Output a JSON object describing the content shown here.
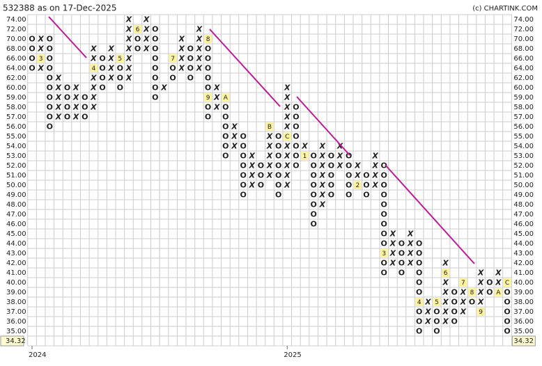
{
  "chart_data": {
    "type": "pnf",
    "title": "532388 as on 17-Dec-2025",
    "source": "(c) CHARTINK.COM",
    "levels": [
      {
        "value": 74,
        "label": "74.00"
      },
      {
        "value": 72,
        "label": "72.00"
      },
      {
        "value": 70,
        "label": "70.00"
      },
      {
        "value": 68,
        "label": "68.00"
      },
      {
        "value": 66,
        "label": "66.00"
      },
      {
        "value": 64,
        "label": "64.00"
      },
      {
        "value": 62,
        "label": "62.00"
      },
      {
        "value": 60,
        "label": "60.00"
      },
      {
        "value": 59,
        "label": "59.00"
      },
      {
        "value": 58,
        "label": "58.00"
      },
      {
        "value": 57,
        "label": "57.00"
      },
      {
        "value": 56,
        "label": "56.00"
      },
      {
        "value": 55,
        "label": "55.00"
      },
      {
        "value": 54,
        "label": "54.00"
      },
      {
        "value": 53,
        "label": "53.00"
      },
      {
        "value": 52,
        "label": "52.00"
      },
      {
        "value": 51,
        "label": "51.00"
      },
      {
        "value": 50,
        "label": "50.00"
      },
      {
        "value": 49,
        "label": "49.00"
      },
      {
        "value": 48,
        "label": "48.00"
      },
      {
        "value": 47,
        "label": "47.00"
      },
      {
        "value": 46,
        "label": "46.00"
      },
      {
        "value": 45,
        "label": "45.00"
      },
      {
        "value": 44,
        "label": "44.00"
      },
      {
        "value": 43,
        "label": "43.00"
      },
      {
        "value": 42,
        "label": "42.00"
      },
      {
        "value": 41,
        "label": "41.00"
      },
      {
        "value": 40,
        "label": "40.00"
      },
      {
        "value": 39,
        "label": "39.00"
      },
      {
        "value": 38,
        "label": "38.00"
      },
      {
        "value": 37,
        "label": "37.00"
      },
      {
        "value": 36,
        "label": "36.00"
      },
      {
        "value": 35,
        "label": "35.00"
      }
    ],
    "last_price": 34.32,
    "year_labels": [
      {
        "label": "2024",
        "column": 0
      },
      {
        "label": "2025",
        "column": 29
      }
    ],
    "columns": [
      {
        "type": "O",
        "high": 70,
        "low": 64,
        "markers": []
      },
      {
        "type": "X",
        "high": 70,
        "low": 64,
        "markers": [
          {
            "value": 66,
            "label": "3"
          }
        ]
      },
      {
        "type": "O",
        "high": 70,
        "low": 56,
        "markers": []
      },
      {
        "type": "X",
        "high": 62,
        "low": 57,
        "markers": []
      },
      {
        "type": "O",
        "high": 60,
        "low": 57,
        "markers": []
      },
      {
        "type": "X",
        "high": 60,
        "low": 57,
        "markers": []
      },
      {
        "type": "O",
        "high": 59,
        "low": 57,
        "markers": []
      },
      {
        "type": "X",
        "high": 68,
        "low": 58,
        "markers": [
          {
            "value": 64,
            "label": "4"
          }
        ]
      },
      {
        "type": "O",
        "high": 66,
        "low": 60,
        "markers": []
      },
      {
        "type": "X",
        "high": 68,
        "low": 62,
        "markers": []
      },
      {
        "type": "O",
        "high": 66,
        "low": 60,
        "markers": [
          {
            "value": 66,
            "label": "5"
          }
        ]
      },
      {
        "type": "X",
        "high": 74,
        "low": 62,
        "markers": []
      },
      {
        "type": "O",
        "high": 72,
        "low": 68,
        "markers": [
          {
            "value": 72,
            "label": "6"
          }
        ]
      },
      {
        "type": "X",
        "high": 74,
        "low": 68,
        "markers": []
      },
      {
        "type": "O",
        "high": 72,
        "low": 59,
        "markers": []
      },
      {
        "type": "X",
        "high": 60,
        "low": 60,
        "markers": []
      },
      {
        "type": "O",
        "high": 66,
        "low": 62,
        "markers": [
          {
            "value": 66,
            "label": "7"
          }
        ]
      },
      {
        "type": "X",
        "high": 70,
        "low": 64,
        "markers": []
      },
      {
        "type": "O",
        "high": 68,
        "low": 62,
        "markers": []
      },
      {
        "type": "X",
        "high": 72,
        "low": 64,
        "markers": []
      },
      {
        "type": "O",
        "high": 70,
        "low": 57,
        "markers": [
          {
            "value": 70,
            "label": "8"
          },
          {
            "value": 59,
            "label": "9"
          }
        ]
      },
      {
        "type": "X",
        "high": 60,
        "low": 58,
        "markers": []
      },
      {
        "type": "O",
        "high": 59,
        "low": 53,
        "markers": [
          {
            "value": 59,
            "label": "A"
          }
        ]
      },
      {
        "type": "X",
        "high": 56,
        "low": 54,
        "markers": []
      },
      {
        "type": "O",
        "high": 55,
        "low": 49,
        "markers": []
      },
      {
        "type": "X",
        "high": 53,
        "low": 50,
        "markers": []
      },
      {
        "type": "O",
        "high": 52,
        "low": 50,
        "markers": []
      },
      {
        "type": "X",
        "high": 56,
        "low": 51,
        "markers": [
          {
            "value": 56,
            "label": "B"
          }
        ]
      },
      {
        "type": "O",
        "high": 55,
        "low": 49,
        "markers": []
      },
      {
        "type": "X",
        "high": 60,
        "low": 50,
        "markers": [
          {
            "value": 55,
            "label": "C"
          }
        ]
      },
      {
        "type": "O",
        "high": 58,
        "low": 52,
        "markers": []
      },
      {
        "type": "X",
        "high": 54,
        "low": 53,
        "markers": [
          {
            "value": 53,
            "label": "1"
          }
        ]
      },
      {
        "type": "O",
        "high": 53,
        "low": 46,
        "markers": []
      },
      {
        "type": "X",
        "high": 54,
        "low": 48,
        "markers": []
      },
      {
        "type": "O",
        "high": 53,
        "low": 49,
        "markers": []
      },
      {
        "type": "X",
        "high": 54,
        "low": 52,
        "markers": []
      },
      {
        "type": "O",
        "high": 53,
        "low": 49,
        "markers": []
      },
      {
        "type": "X",
        "high": 52,
        "low": 50,
        "markers": [
          {
            "value": 50,
            "label": "2"
          }
        ]
      },
      {
        "type": "O",
        "high": 51,
        "low": 49,
        "markers": []
      },
      {
        "type": "X",
        "high": 53,
        "low": 50,
        "markers": []
      },
      {
        "type": "O",
        "high": 52,
        "low": 41,
        "markers": [
          {
            "value": 43,
            "label": "3"
          }
        ]
      },
      {
        "type": "X",
        "high": 45,
        "low": 42,
        "markers": []
      },
      {
        "type": "O",
        "high": 44,
        "low": 41,
        "markers": []
      },
      {
        "type": "X",
        "high": 45,
        "low": 42,
        "markers": []
      },
      {
        "type": "O",
        "high": 44,
        "low": 35,
        "markers": [
          {
            "value": 38,
            "label": "4"
          }
        ]
      },
      {
        "type": "X",
        "high": 38,
        "low": 36,
        "markers": []
      },
      {
        "type": "O",
        "high": 38,
        "low": 35,
        "markers": [
          {
            "value": 38,
            "label": "5"
          }
        ]
      },
      {
        "type": "X",
        "high": 42,
        "low": 36,
        "markers": [
          {
            "value": 41,
            "label": "6"
          }
        ]
      },
      {
        "type": "O",
        "high": 39,
        "low": 36,
        "markers": []
      },
      {
        "type": "X",
        "high": 40,
        "low": 37,
        "markers": [
          {
            "value": 40,
            "label": "7"
          }
        ]
      },
      {
        "type": "O",
        "high": 39,
        "low": 38,
        "markers": [
          {
            "value": 39,
            "label": "8"
          }
        ]
      },
      {
        "type": "X",
        "high": 41,
        "low": 37,
        "markers": [
          {
            "value": 37,
            "label": "9"
          }
        ]
      },
      {
        "type": "O",
        "high": 40,
        "low": 39,
        "markers": []
      },
      {
        "type": "X",
        "high": 41,
        "low": 39,
        "markers": [
          {
            "value": 39,
            "label": "A"
          }
        ]
      },
      {
        "type": "O",
        "high": 40,
        "low": 35,
        "markers": [
          {
            "value": 40,
            "label": "C"
          }
        ]
      }
    ]
  }
}
